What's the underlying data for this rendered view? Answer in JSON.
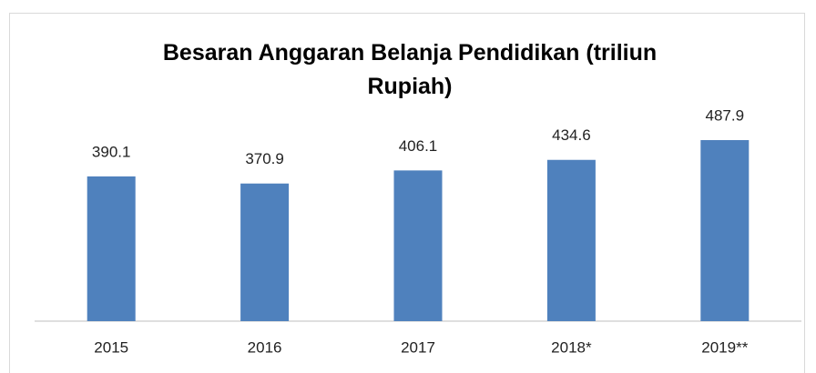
{
  "chart_data": {
    "type": "bar",
    "title": "Besaran Anggaran Belanja Pendidikan (triliun Rupiah)",
    "categories": [
      "2015",
      "2016",
      "2017",
      "2018*",
      "2019**"
    ],
    "values": [
      390.1,
      370.9,
      406.1,
      434.6,
      487.9
    ],
    "color": "#4f81bd"
  }
}
